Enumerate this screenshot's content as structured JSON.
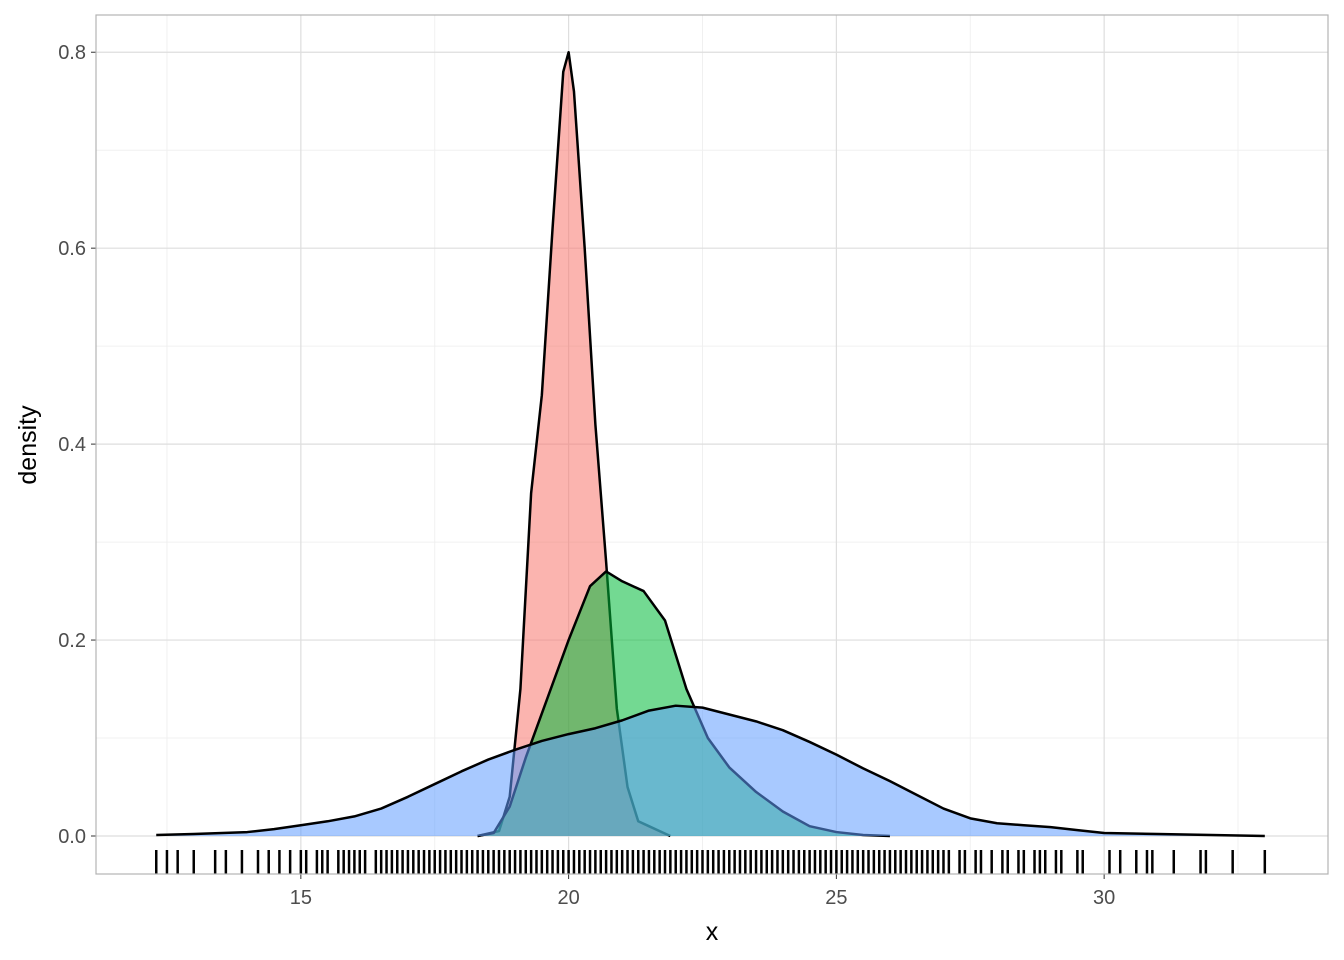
{
  "chart_data": {
    "type": "density",
    "x_label": "x",
    "y_label": "density",
    "xlim": [
      11.175,
      34.18
    ],
    "ylim": [
      -0.0388,
      0.838
    ],
    "xticks": [
      15,
      20,
      25,
      30
    ],
    "yticks": [
      {
        "value": 0,
        "label": "0.0"
      },
      0.2,
      0.4,
      0.6,
      0.8
    ],
    "xminor": [
      12.5,
      17.5,
      22.5,
      27.5,
      32.5
    ],
    "yminor": [
      0.1,
      0.3,
      0.5,
      0.7
    ],
    "grid": true,
    "series": [
      {
        "color": "#F8766D",
        "x": [
          18.3,
          18.7,
          18.9,
          19.1,
          19.3,
          19.5,
          19.7,
          19.9,
          20.0,
          20.1,
          20.3,
          20.5,
          20.7,
          20.9,
          21.1,
          21.3,
          21.5,
          21.7,
          21.9
        ],
        "values": [
          0,
          0.005,
          0.04,
          0.15,
          0.35,
          0.45,
          0.62,
          0.78,
          0.8,
          0.76,
          0.6,
          0.42,
          0.28,
          0.13,
          0.05,
          0.015,
          0.01,
          0.005,
          0
        ]
      },
      {
        "color": "#00BA38",
        "x": [
          18.3,
          18.6,
          18.9,
          19.2,
          19.6,
          20.0,
          20.4,
          20.7,
          21.0,
          21.4,
          21.8,
          22.2,
          22.6,
          23.0,
          23.5,
          24.0,
          24.5,
          25.0,
          25.5,
          26.0
        ],
        "values": [
          0,
          0.003,
          0.03,
          0.08,
          0.14,
          0.2,
          0.255,
          0.27,
          0.26,
          0.25,
          0.22,
          0.15,
          0.1,
          0.07,
          0.045,
          0.025,
          0.01,
          0.004,
          0.001,
          0
        ]
      },
      {
        "color": "#619CFF",
        "x": [
          12.3,
          13,
          14,
          14.5,
          15,
          15.5,
          16,
          16.5,
          17,
          17.5,
          18,
          18.5,
          19,
          19.5,
          20,
          20.5,
          21,
          21.5,
          22,
          22.5,
          23,
          23.5,
          24,
          24.5,
          25,
          25.5,
          26,
          26.5,
          27,
          27.5,
          28,
          28.5,
          29,
          29.5,
          30,
          31,
          32,
          33
        ],
        "values": [
          0.001,
          0.002,
          0.004,
          0.007,
          0.011,
          0.015,
          0.02,
          0.028,
          0.04,
          0.053,
          0.066,
          0.078,
          0.088,
          0.097,
          0.104,
          0.11,
          0.118,
          0.128,
          0.133,
          0.131,
          0.124,
          0.117,
          0.108,
          0.096,
          0.083,
          0.069,
          0.056,
          0.042,
          0.028,
          0.018,
          0.013,
          0.011,
          0.009,
          0.006,
          0.003,
          0.002,
          0.001,
          0
        ]
      }
    ],
    "rug": [
      12.3,
      12.5,
      12.7,
      13.0,
      13.4,
      13.6,
      13.9,
      14.2,
      14.4,
      14.6,
      14.8,
      15.0,
      15.1,
      15.3,
      15.4,
      15.5,
      15.7,
      15.8,
      15.9,
      16.0,
      16.1,
      16.2,
      16.4,
      16.5,
      16.6,
      16.7,
      16.8,
      16.9,
      17.0,
      17.1,
      17.2,
      17.3,
      17.4,
      17.5,
      17.6,
      17.7,
      17.8,
      17.9,
      18.0,
      18.1,
      18.2,
      18.3,
      18.4,
      18.5,
      18.6,
      18.7,
      18.8,
      18.9,
      19.0,
      19.1,
      19.2,
      19.3,
      19.4,
      19.5,
      19.6,
      19.7,
      19.8,
      19.9,
      20.0,
      20.1,
      20.2,
      20.3,
      20.4,
      20.5,
      20.6,
      20.7,
      20.8,
      20.9,
      21.0,
      21.1,
      21.2,
      21.3,
      21.4,
      21.5,
      21.6,
      21.7,
      21.8,
      21.9,
      22.0,
      22.1,
      22.2,
      22.3,
      22.4,
      22.5,
      22.6,
      22.7,
      22.8,
      22.9,
      23.0,
      23.1,
      23.2,
      23.3,
      23.4,
      23.5,
      23.6,
      23.7,
      23.8,
      23.9,
      24.0,
      24.1,
      24.2,
      24.3,
      24.4,
      24.5,
      24.6,
      24.7,
      24.8,
      24.9,
      25.0,
      25.1,
      25.2,
      25.3,
      25.4,
      25.5,
      25.6,
      25.7,
      25.8,
      25.9,
      26.0,
      26.1,
      26.2,
      26.3,
      26.4,
      26.5,
      26.6,
      26.7,
      26.8,
      26.9,
      27.0,
      27.1,
      27.3,
      27.4,
      27.6,
      27.7,
      27.9,
      28.1,
      28.2,
      28.4,
      28.5,
      28.7,
      28.8,
      28.9,
      29.1,
      29.2,
      29.5,
      29.6,
      30.1,
      30.3,
      30.6,
      30.8,
      30.9,
      31.3,
      31.8,
      31.9,
      32.4,
      33.0
    ]
  }
}
